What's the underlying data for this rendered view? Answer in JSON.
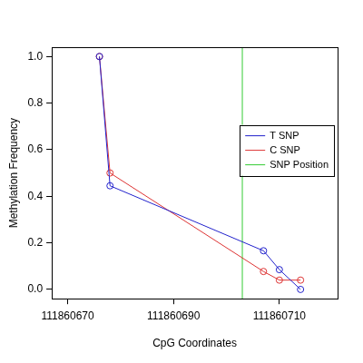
{
  "chart_data": {
    "type": "line",
    "x_label": "CpG Coordinates",
    "y_label": "Methylation Frequency",
    "x": [
      111860676,
      111860678,
      111860707,
      111860710,
      111860714
    ],
    "series": [
      {
        "name": "T SNP",
        "color": "#2222cc",
        "values": [
          1.0,
          0.445,
          0.166,
          0.085,
          0.0
        ],
        "marker": "circle",
        "line_style": "solid"
      },
      {
        "name": "C SNP",
        "color": "#dd3333",
        "values": [
          1.0,
          0.5,
          0.077,
          0.04,
          0.04
        ],
        "marker": "circle",
        "line_style": "solid"
      }
    ],
    "vlines": [
      {
        "name": "SNP Position",
        "color": "#33cc33",
        "x": 111860703
      }
    ],
    "xlim": [
      111860667,
      111860721
    ],
    "xticks": [
      111860670,
      111860690,
      111860710
    ],
    "ylim": [
      -0.04,
      1.04
    ],
    "yticks": [
      {
        "value": 0,
        "label": "0.0"
      },
      {
        "value": 0.2,
        "label": "0.2"
      },
      {
        "value": 0.4,
        "label": "0.4"
      },
      {
        "value": 0.6,
        "label": "0.6"
      },
      {
        "value": 0.8,
        "label": "0.8"
      },
      {
        "value": 1,
        "label": "1.0"
      }
    ],
    "grid": false,
    "legend": "right"
  }
}
